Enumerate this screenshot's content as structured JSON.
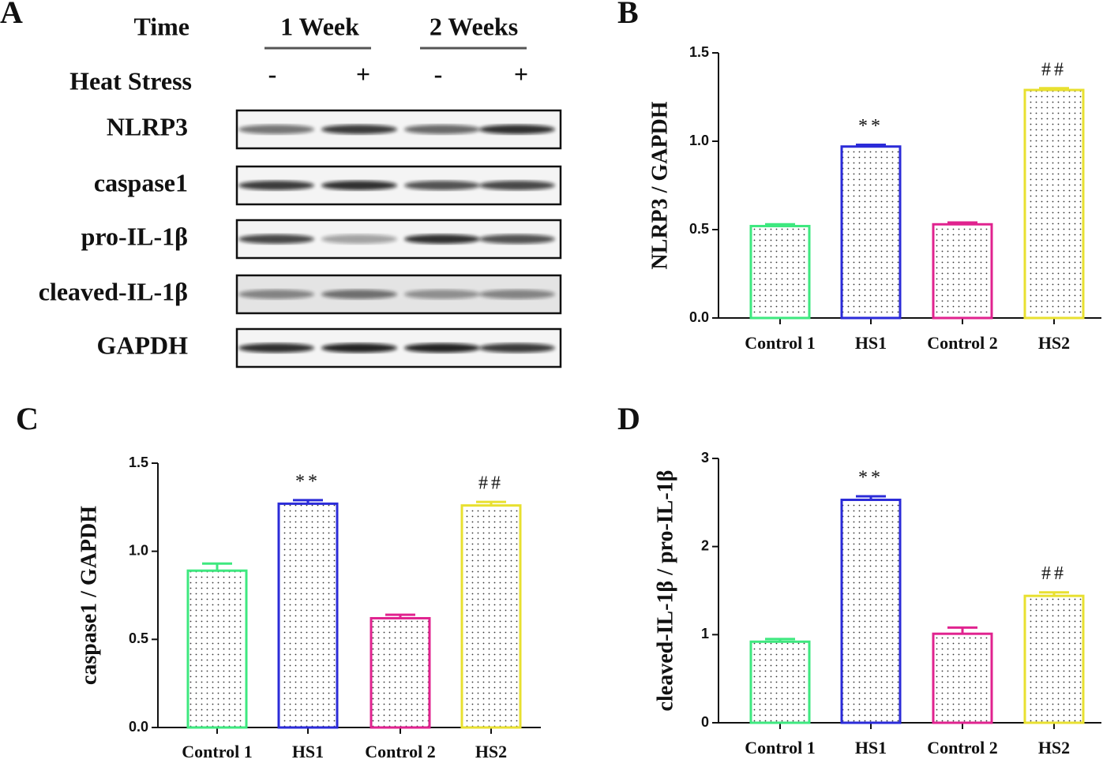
{
  "blot": {
    "panel": "A",
    "time_label": "Time",
    "groups": [
      "1 Week",
      "2 Weeks"
    ],
    "treatment_label": "Heat Stress",
    "treatments": [
      "-",
      "+",
      "-",
      "+"
    ],
    "rows": [
      "NLRP3",
      "caspase1",
      "pro-IL-1β",
      "cleaved-IL-1β",
      "GAPDH"
    ]
  },
  "chart_data": [
    {
      "type": "bar",
      "panel": "B",
      "ylabel": "NLRP3 / GAPDH",
      "categories": [
        "Control 1",
        "HS1",
        "Control 2",
        "HS2"
      ],
      "values": [
        0.52,
        0.97,
        0.53,
        1.29
      ],
      "errors": [
        0.01,
        0.01,
        0.01,
        0.01
      ],
      "annotations": [
        null,
        "**",
        null,
        "##"
      ],
      "colors": [
        "#3ee87f",
        "#2b2bd8",
        "#e0238f",
        "#e8e030"
      ],
      "ylim": [
        0,
        1.5
      ],
      "yticks": [
        {
          "value": 0,
          "label": "0.0"
        },
        0.5,
        {
          "value": 1,
          "label": "1.0"
        },
        1.5
      ]
    },
    {
      "type": "bar",
      "panel": "C",
      "ylabel": "caspase1 / GAPDH",
      "categories": [
        "Control 1",
        "HS1",
        "Control 2",
        "HS2"
      ],
      "values": [
        0.89,
        1.27,
        0.62,
        1.26
      ],
      "errors": [
        0.04,
        0.02,
        0.02,
        0.02
      ],
      "annotations": [
        null,
        "**",
        null,
        "##"
      ],
      "colors": [
        "#3ee87f",
        "#2b2bd8",
        "#e0238f",
        "#e8e030"
      ],
      "ylim": [
        0,
        1.5
      ],
      "yticks": [
        {
          "value": 0,
          "label": "0.0"
        },
        0.5,
        {
          "value": 1,
          "label": "1.0"
        },
        1.5
      ]
    },
    {
      "type": "bar",
      "panel": "D",
      "ylabel": "cleaved-IL-1β / pro-IL-1β",
      "categories": [
        "Control 1",
        "HS1",
        "Control 2",
        "HS2"
      ],
      "values": [
        0.92,
        2.53,
        1.01,
        1.44
      ],
      "errors": [
        0.03,
        0.04,
        0.07,
        0.04
      ],
      "annotations": [
        null,
        "**",
        null,
        "##"
      ],
      "colors": [
        "#3ee87f",
        "#2b2bd8",
        "#e0238f",
        "#e8e030"
      ],
      "ylim": [
        0,
        3
      ],
      "yticks": [
        0,
        1,
        2,
        3
      ]
    }
  ]
}
